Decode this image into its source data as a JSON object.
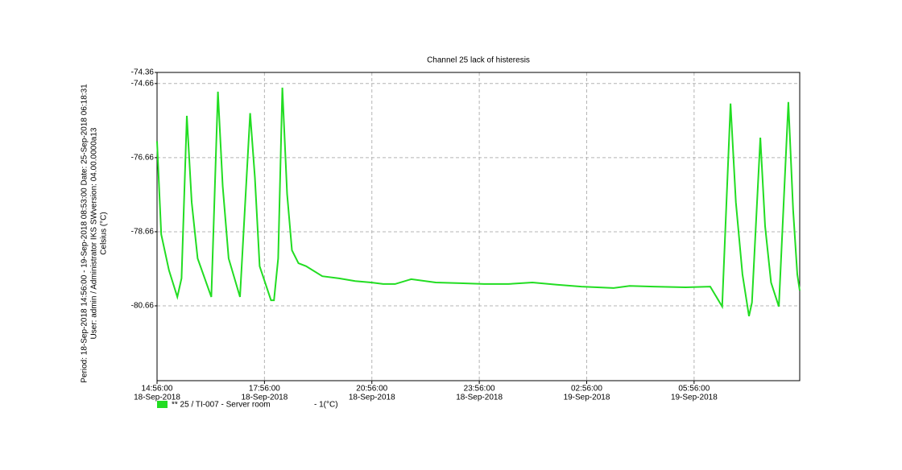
{
  "chart_data": {
    "type": "line",
    "title": "Channel 25 lack of histeresis",
    "side_info": [
      "Period: 18-Sep-2018 14:56:00 - 19-Sep-2018 08:53:00   Date: 25-Sep-2018 06:18:31",
      "User: admin / Administrator IKS   SWversion: 04.00.0000a13"
    ],
    "y_label": "Celsius (°C)",
    "unit_label": "- 1(°C)",
    "grid": true,
    "xlim": [
      "2018-09-18T14:56:00",
      "2018-09-19T08:53:00"
    ],
    "xticks": [
      {
        "value": "2018-09-18T14:56:00",
        "label": [
          "14:56:00",
          "18-Sep-2018"
        ]
      },
      {
        "value": "2018-09-18T17:56:00",
        "label": [
          "17:56:00",
          "18-Sep-2018"
        ]
      },
      {
        "value": "2018-09-18T20:56:00",
        "label": [
          "20:56:00",
          "18-Sep-2018"
        ]
      },
      {
        "value": "2018-09-18T23:56:00",
        "label": [
          "23:56:00",
          "18-Sep-2018"
        ]
      },
      {
        "value": "2018-09-19T02:56:00",
        "label": [
          "02:56:00",
          "19-Sep-2018"
        ]
      },
      {
        "value": "2018-09-19T05:56:00",
        "label": [
          "05:56:00",
          "19-Sep-2018"
        ]
      }
    ],
    "ylim": [
      -82.68,
      -74.36
    ],
    "yticks": [
      -74.36,
      -74.66,
      -76.66,
      -78.66,
      -80.66
    ],
    "x": [
      "2018-09-18T14:56:00",
      "2018-09-18T15:03:00",
      "2018-09-18T15:16:00",
      "2018-09-18T15:30:00",
      "2018-09-18T15:37:00",
      "2018-09-18T15:46:00",
      "2018-09-18T15:54:00",
      "2018-09-18T16:04:00",
      "2018-09-18T16:27:00",
      "2018-09-18T16:38:00",
      "2018-09-18T16:46:00",
      "2018-09-18T16:56:00",
      "2018-09-18T17:15:00",
      "2018-09-18T17:32:00",
      "2018-09-18T17:40:00",
      "2018-09-18T17:48:00",
      "2018-09-18T18:07:00",
      "2018-09-18T18:12:00",
      "2018-09-18T18:19:00",
      "2018-09-18T18:26:00",
      "2018-09-18T18:34:00",
      "2018-09-18T18:42:00",
      "2018-09-18T18:53:00",
      "2018-09-18T19:06:00",
      "2018-09-18T19:33:00",
      "2018-09-18T20:01:00",
      "2018-09-18T20:28:00",
      "2018-09-18T20:55:00",
      "2018-09-18T21:15:00",
      "2018-09-18T21:35:00",
      "2018-09-18T22:02:00",
      "2018-09-18T22:43:00",
      "2018-09-18T23:24:00",
      "2018-09-19T00:04:00",
      "2018-09-19T00:45:00",
      "2018-09-19T01:25:00",
      "2018-09-19T02:06:00",
      "2018-09-19T02:47:00",
      "2018-09-19T03:41:00",
      "2018-09-19T04:08:00",
      "2018-09-19T04:48:00",
      "2018-09-19T05:42:00",
      "2018-09-19T06:23:00",
      "2018-09-19T06:43:00",
      "2018-09-19T06:57:00",
      "2018-09-19T07:06:00",
      "2018-09-19T07:17:00",
      "2018-09-19T07:28:00",
      "2018-09-19T07:33:00",
      "2018-09-19T07:47:00",
      "2018-09-19T07:55:00",
      "2018-09-19T08:05:00",
      "2018-09-19T08:18:00",
      "2018-09-19T08:34:00",
      "2018-09-19T08:42:00",
      "2018-09-19T08:49:00",
      "2018-09-19T08:53:00"
    ],
    "series": [
      {
        "name": "** 25 / TI-007 - Server room",
        "color": "#22dd22",
        "values": [
          -76.22,
          -78.73,
          -79.7,
          -80.42,
          -79.92,
          -75.53,
          -77.86,
          -79.38,
          -80.42,
          -74.88,
          -77.42,
          -79.38,
          -80.42,
          -75.46,
          -77.2,
          -79.59,
          -80.51,
          -80.51,
          -79.38,
          -74.77,
          -77.64,
          -79.16,
          -79.51,
          -79.59,
          -79.86,
          -79.92,
          -79.99,
          -80.03,
          -80.07,
          -80.07,
          -79.94,
          -80.03,
          -80.05,
          -80.07,
          -80.07,
          -80.03,
          -80.09,
          -80.14,
          -80.18,
          -80.12,
          -80.14,
          -80.16,
          -80.14,
          -80.68,
          -75.2,
          -77.86,
          -79.81,
          -80.94,
          -80.57,
          -76.12,
          -78.51,
          -80.03,
          -80.68,
          -75.16,
          -78.07,
          -79.81,
          -80.25
        ]
      }
    ]
  }
}
